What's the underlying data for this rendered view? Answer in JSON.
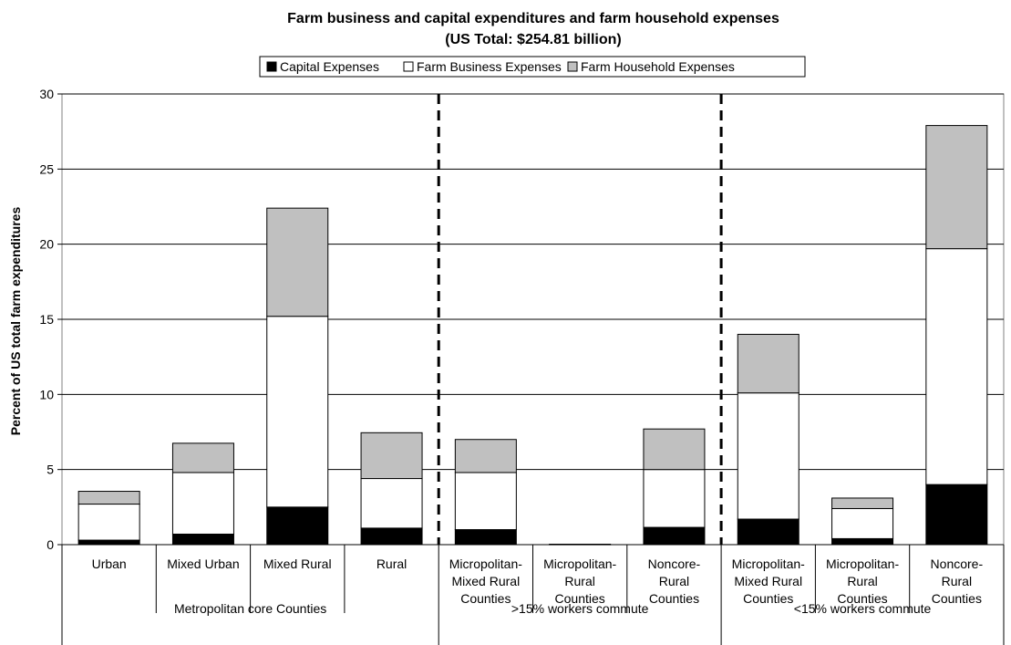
{
  "chart_data": {
    "type": "bar",
    "stacked": true,
    "title": "Farm business and capital expenditures and farm household expenses",
    "subtitle": "(US Total: $254.81 billion)",
    "ylabel": "Percent of US total farm expenditures",
    "xlabel": "",
    "ylim": [
      0,
      30
    ],
    "yticks": [
      "0",
      "5",
      "10",
      "15",
      "20",
      "25",
      "30"
    ],
    "grid": true,
    "legend_position": "top",
    "categories": [
      [
        "Urban"
      ],
      [
        "Mixed Urban"
      ],
      [
        "Mixed Rural"
      ],
      [
        "Rural"
      ],
      [
        "Micropolitan-",
        "Mixed Rural",
        "Counties"
      ],
      [
        "Micropolitan-",
        "Rural",
        "Counties"
      ],
      [
        "Noncore-",
        "Rural",
        "Counties"
      ],
      [
        "Micropolitan-",
        "Mixed Rural",
        "Counties"
      ],
      [
        "Micropolitan-",
        "Rural",
        "Counties"
      ],
      [
        "Noncore-",
        "Rural",
        "Counties"
      ]
    ],
    "groups": [
      {
        "label": "Metropolitan core Counties",
        "count": 4
      },
      {
        "label": ">15% workers commute",
        "count": 3
      },
      {
        "label": "<15% workers commute",
        "count": 3
      }
    ],
    "series": [
      {
        "name": "Capital Expenses",
        "color": "#000000",
        "values": [
          0.3,
          0.7,
          2.5,
          1.1,
          1.0,
          0.0,
          1.15,
          1.7,
          0.4,
          4.0
        ]
      },
      {
        "name": "Farm Business Expenses",
        "color": "#ffffff",
        "values": [
          2.4,
          4.1,
          12.7,
          3.3,
          3.8,
          0.03,
          3.85,
          8.4,
          2.0,
          15.7
        ]
      },
      {
        "name": "Farm Household Expenses",
        "color": "#c0c0c0",
        "values": [
          0.85,
          1.95,
          7.2,
          3.05,
          2.2,
          0.0,
          2.7,
          3.9,
          0.7,
          8.2
        ]
      }
    ]
  }
}
